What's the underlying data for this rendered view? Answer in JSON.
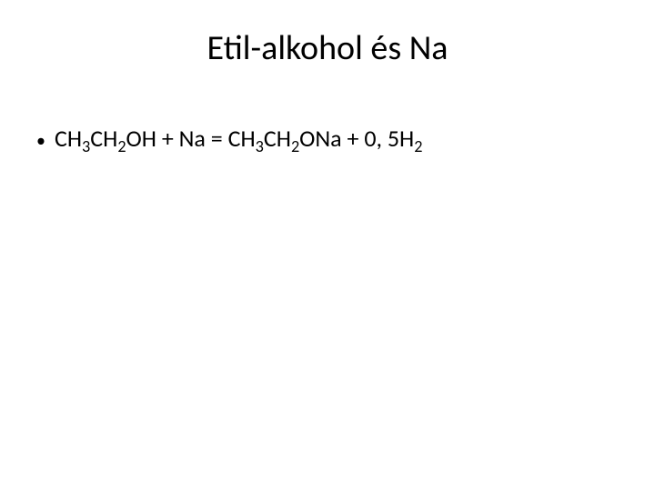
{
  "slide": {
    "title": "Etil-alkohol és Na",
    "bullet_marker": "•",
    "formula_parts": {
      "p1": "CH",
      "s1": "3",
      "p2": "CH",
      "s2": "2",
      "p3": "OH + Na = CH",
      "s3": "3",
      "p4": "CH",
      "s4": "2",
      "p5": "ONa + 0, 5H",
      "s5": "2"
    }
  },
  "styling": {
    "background_color": "#ffffff",
    "text_color": "#000000",
    "title_fontsize": 38,
    "body_fontsize": 26,
    "font_family": "Calibri"
  }
}
